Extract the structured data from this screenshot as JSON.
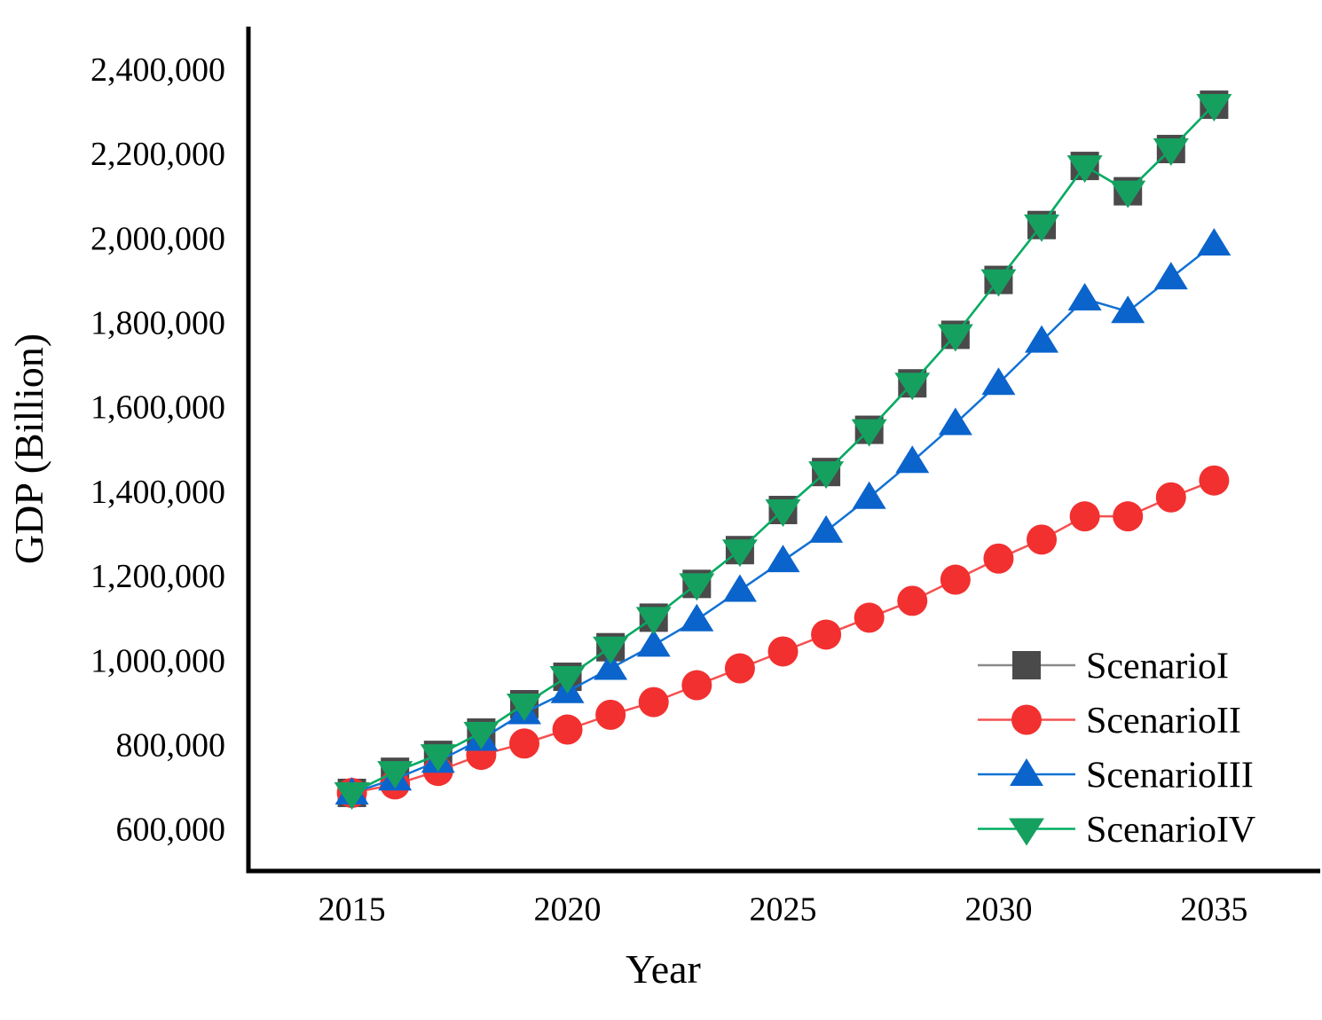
{
  "chart_data": {
    "type": "line",
    "title": "",
    "xlabel": "Year",
    "ylabel": "GDP (Billion)",
    "grid": false,
    "legend_position": "inside lower right",
    "xlim": [
      2012.6,
      2037.4
    ],
    "ylim": [
      500000,
      2500000
    ],
    "xticks": [
      2015,
      2020,
      2025,
      2030,
      2035
    ],
    "yticks": [
      600000,
      800000,
      1000000,
      1200000,
      1400000,
      1600000,
      1800000,
      2000000,
      2200000,
      2400000
    ],
    "x": [
      2015,
      2016,
      2017,
      2018,
      2019,
      2020,
      2021,
      2022,
      2023,
      2024,
      2025,
      2026,
      2027,
      2028,
      2029,
      2030,
      2031,
      2032,
      2033,
      2034,
      2035
    ],
    "series": [
      {
        "name": "ScenarioI",
        "marker": "square",
        "color": "#4a4a4a",
        "line_color": "#8a8a8a",
        "values": [
          685000,
          735000,
          775000,
          828000,
          895000,
          960000,
          1030000,
          1100000,
          1180000,
          1260000,
          1355000,
          1445000,
          1545000,
          1655000,
          1770000,
          1900000,
          2030000,
          2170000,
          2110000,
          2210000,
          2315000
        ]
      },
      {
        "name": "ScenarioII",
        "marker": "circle",
        "color": "#f23030",
        "line_color": "#f55050",
        "values": [
          685000,
          705000,
          737000,
          775000,
          802000,
          835000,
          870000,
          900000,
          940000,
          980000,
          1020000,
          1060000,
          1100000,
          1140000,
          1190000,
          1240000,
          1285000,
          1340000,
          1340000,
          1385000,
          1425000
        ]
      },
      {
        "name": "ScenarioIII",
        "marker": "triangle-up",
        "color": "#0a64cc",
        "line_color": "#1272d4",
        "values": [
          685000,
          718000,
          760000,
          812000,
          875000,
          925000,
          980000,
          1035000,
          1095000,
          1165000,
          1235000,
          1305000,
          1385000,
          1470000,
          1560000,
          1655000,
          1755000,
          1855000,
          1825000,
          1905000,
          1985000
        ]
      },
      {
        "name": "ScenarioIV",
        "marker": "triangle-down",
        "color": "#16a060",
        "line_color": "#00ad62",
        "values": [
          685000,
          735000,
          775000,
          828000,
          895000,
          960000,
          1030000,
          1100000,
          1180000,
          1260000,
          1355000,
          1445000,
          1545000,
          1655000,
          1770000,
          1900000,
          2030000,
          2170000,
          2110000,
          2210000,
          2315000
        ]
      }
    ]
  }
}
